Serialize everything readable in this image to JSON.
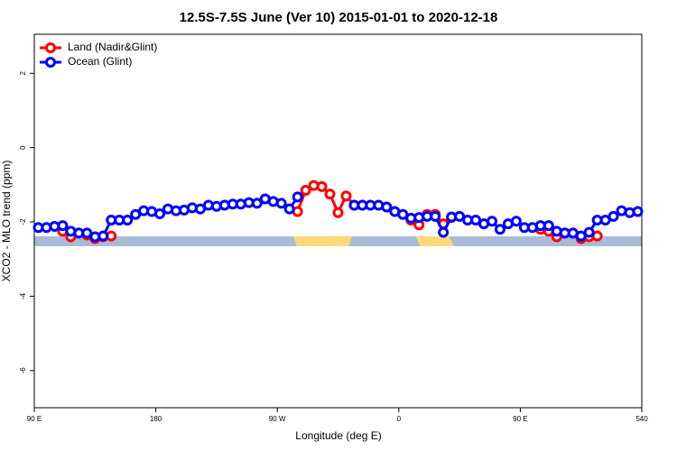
{
  "chart_data": {
    "type": "line",
    "title": "12.5S-7.5S June (Ver 10)   2015-01-01 to 2020-12-18",
    "x_label": "Longitude (deg E)",
    "y_label": "XCO2 - MLO trend (ppm)",
    "legend": "top-left",
    "xlim": [
      90,
      540
    ],
    "xticks": [
      {
        "value": 90,
        "label": "90 E"
      },
      180,
      {
        "value": 270,
        "label": "90 W"
      },
      {
        "value": 360,
        "label": "0"
      },
      {
        "value": 450,
        "label": "90 E"
      },
      540
    ],
    "ylim": [
      -7,
      3.05
    ],
    "yticks": [
      2,
      0,
      -2,
      -4,
      -6
    ],
    "x": [
      93,
      99,
      105,
      111,
      117,
      123,
      129,
      135,
      141,
      147,
      153,
      159,
      165,
      171,
      177,
      183,
      189,
      195,
      201,
      207,
      213,
      219,
      225,
      231,
      237,
      243,
      249,
      255,
      261,
      267,
      273,
      279,
      285,
      291,
      297,
      303,
      309,
      315,
      321,
      327,
      333,
      339,
      345,
      351,
      357,
      363,
      369,
      375,
      381,
      387,
      393,
      399,
      405,
      411,
      417,
      423,
      429,
      435,
      441,
      447,
      453,
      459,
      465,
      471,
      477,
      483,
      489,
      495,
      501,
      507,
      513,
      519,
      525,
      531,
      537
    ],
    "series": [
      {
        "name": "Land (Nadir&Glint)",
        "color": "#ff0000",
        "values": [
          null,
          null,
          null,
          -2.25,
          -2.4,
          -2.3,
          -2.35,
          -2.45,
          -2.4,
          -2.38,
          null,
          null,
          null,
          null,
          null,
          null,
          null,
          null,
          null,
          null,
          null,
          null,
          null,
          null,
          null,
          null,
          null,
          null,
          null,
          null,
          null,
          null,
          -1.72,
          -1.15,
          -1.02,
          -1.05,
          -1.25,
          -1.75,
          -1.3,
          -1.55,
          -1.55,
          null,
          null,
          null,
          null,
          null,
          -1.95,
          -2.08,
          -1.8,
          -1.8,
          -2.05,
          -1.88,
          null,
          null,
          null,
          null,
          null,
          null,
          null,
          null,
          null,
          null,
          -2.2,
          -2.25,
          -2.4,
          -2.3,
          -2.3,
          -2.45,
          -2.4,
          -2.38,
          null,
          null,
          null,
          null,
          null
        ]
      },
      {
        "name": "Ocean (Glint)",
        "color": "#0000ff",
        "values": [
          -2.15,
          -2.15,
          -2.12,
          -2.1,
          -2.25,
          -2.3,
          -2.3,
          -2.4,
          -2.38,
          -1.95,
          -1.95,
          -1.95,
          -1.8,
          -1.7,
          -1.72,
          -1.78,
          -1.65,
          -1.7,
          -1.68,
          -1.62,
          -1.65,
          -1.55,
          -1.58,
          -1.55,
          -1.52,
          -1.52,
          -1.48,
          -1.5,
          -1.38,
          -1.45,
          -1.5,
          -1.65,
          -1.33,
          null,
          null,
          null,
          null,
          null,
          null,
          -1.55,
          -1.55,
          -1.55,
          -1.55,
          -1.6,
          -1.72,
          -1.8,
          -1.9,
          -1.88,
          -1.85,
          -1.85,
          -2.28,
          -1.87,
          -1.85,
          -1.95,
          -1.95,
          -2.05,
          -1.98,
          -2.2,
          -2.05,
          -1.98,
          -2.15,
          -2.15,
          -2.1,
          -2.1,
          -2.25,
          -2.3,
          -2.3,
          -2.38,
          -2.28,
          -1.95,
          -1.95,
          -1.85,
          -1.7,
          -1.75,
          -1.72
        ]
      }
    ]
  }
}
